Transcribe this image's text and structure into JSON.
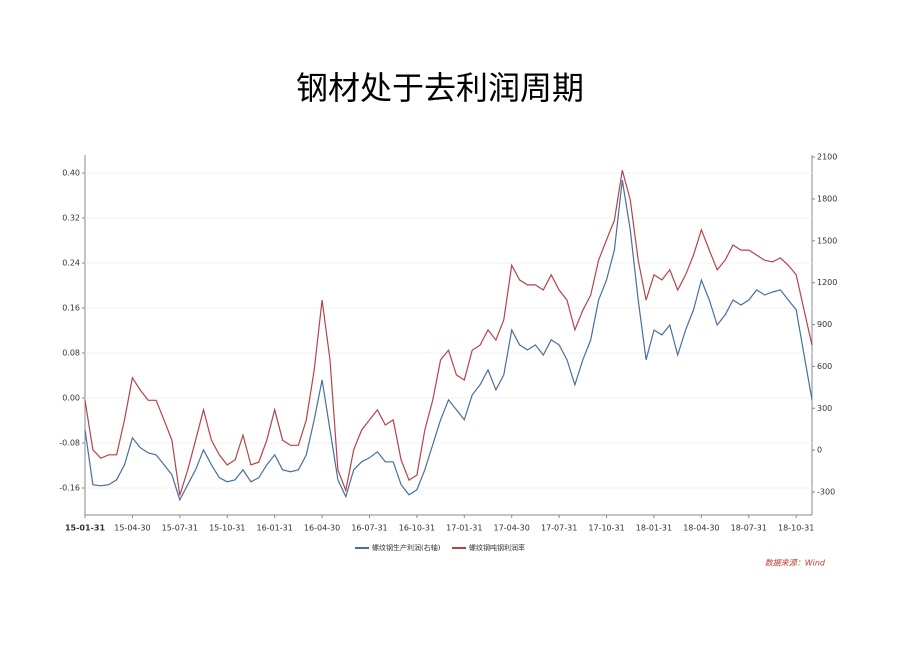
{
  "chart_data": {
    "type": "line",
    "title": "钢材处于去利润周期",
    "source": "数据来源：Wind",
    "categories": [
      "15-01-31",
      null,
      null,
      null,
      null,
      null,
      "15-04-30",
      null,
      null,
      null,
      null,
      null,
      "15-07-31",
      null,
      null,
      null,
      null,
      null,
      "15-10-31",
      null,
      null,
      null,
      null,
      null,
      "16-01-31",
      null,
      null,
      null,
      null,
      null,
      "16-04-30",
      null,
      null,
      null,
      null,
      null,
      "16-07-31",
      null,
      null,
      null,
      null,
      null,
      "16-10-31",
      null,
      null,
      null,
      null,
      null,
      "17-01-31",
      null,
      null,
      null,
      null,
      null,
      "17-04-30",
      null,
      null,
      null,
      null,
      null,
      "17-07-31",
      null,
      null,
      null,
      null,
      null,
      "17-10-31",
      null,
      null,
      null,
      null,
      null,
      "18-01-31",
      null,
      null,
      null,
      null,
      null,
      "18-04-30",
      null,
      null,
      null,
      null,
      null,
      "18-07-31",
      null,
      null,
      null,
      null,
      null,
      "18-10-31",
      null,
      null
    ],
    "series": [
      {
        "name": "螺纹钢生产利润(右轴)",
        "color": "#4a6f9c",
        "axis": "y2",
        "values": [
          145,
          -248,
          -256,
          -248,
          -213,
          -105,
          88,
          17,
          -19,
          -34,
          -105,
          -177,
          -356,
          -248,
          -141,
          2,
          -105,
          -198,
          -227,
          -213,
          -141,
          -227,
          -198,
          -105,
          -34,
          -141,
          -155,
          -141,
          -34,
          217,
          503,
          145,
          -213,
          -334,
          -141,
          -84,
          -55,
          -12,
          -84,
          -84,
          -248,
          -320,
          -284,
          -141,
          38,
          217,
          360,
          289,
          217,
          396,
          468,
          575,
          432,
          539,
          861,
          754,
          718,
          754,
          682,
          790,
          754,
          647,
          468,
          647,
          790,
          1076,
          1219,
          1434,
          1935,
          1577,
          1076,
          647,
          861,
          826,
          897,
          682,
          861,
          1005,
          1219,
          1076,
          897,
          969,
          1076,
          1040,
          1076,
          1148,
          1112,
          1133,
          1148,
          1076,
          1005,
          682,
          360
        ]
      },
      {
        "name": "螺纹钢吨钢利润率",
        "color": "#b5444a",
        "values": [
          -0.004,
          -0.092,
          -0.107,
          -0.101,
          -0.101,
          -0.039,
          0.036,
          0.014,
          -0.004,
          -0.004,
          -0.039,
          -0.075,
          -0.173,
          -0.128,
          -0.075,
          -0.021,
          -0.075,
          -0.101,
          -0.119,
          -0.11,
          -0.066,
          -0.119,
          -0.114,
          -0.075,
          -0.021,
          -0.075,
          -0.084,
          -0.084,
          -0.039,
          0.05,
          0.174,
          0.068,
          -0.128,
          -0.164,
          -0.092,
          -0.057,
          -0.039,
          -0.021,
          -0.048,
          -0.039,
          -0.11,
          -0.146,
          -0.137,
          -0.057,
          -0.004,
          0.068,
          0.085,
          0.041,
          0.032,
          0.085,
          0.094,
          0.121,
          0.103,
          0.139,
          0.236,
          0.21,
          0.201,
          0.201,
          0.192,
          0.219,
          0.192,
          0.174,
          0.121,
          0.156,
          0.183,
          0.245,
          0.281,
          0.316,
          0.405,
          0.352,
          0.245,
          0.174,
          0.219,
          0.21,
          0.228,
          0.192,
          0.219,
          0.254,
          0.299,
          0.263,
          0.228,
          0.245,
          0.272,
          0.263,
          0.263,
          0.254,
          0.245,
          0.242,
          0.249,
          0.236,
          0.219,
          0.156,
          0.094
        ]
      }
    ],
    "ylim": [
      -0.208,
      0.432
    ],
    "yticks": [
      -0.16,
      -0.08,
      {
        "value": 0,
        "label": "0.00"
      },
      0.08,
      0.16,
      0.24,
      0.32,
      {
        "value": 0.4,
        "label": "0.40"
      }
    ],
    "y2lim": [
      -465,
      2115
    ],
    "y2ticks": [
      -300,
      0,
      300,
      600,
      900,
      1200,
      1500,
      1800,
      2100
    ],
    "grid": true
  }
}
